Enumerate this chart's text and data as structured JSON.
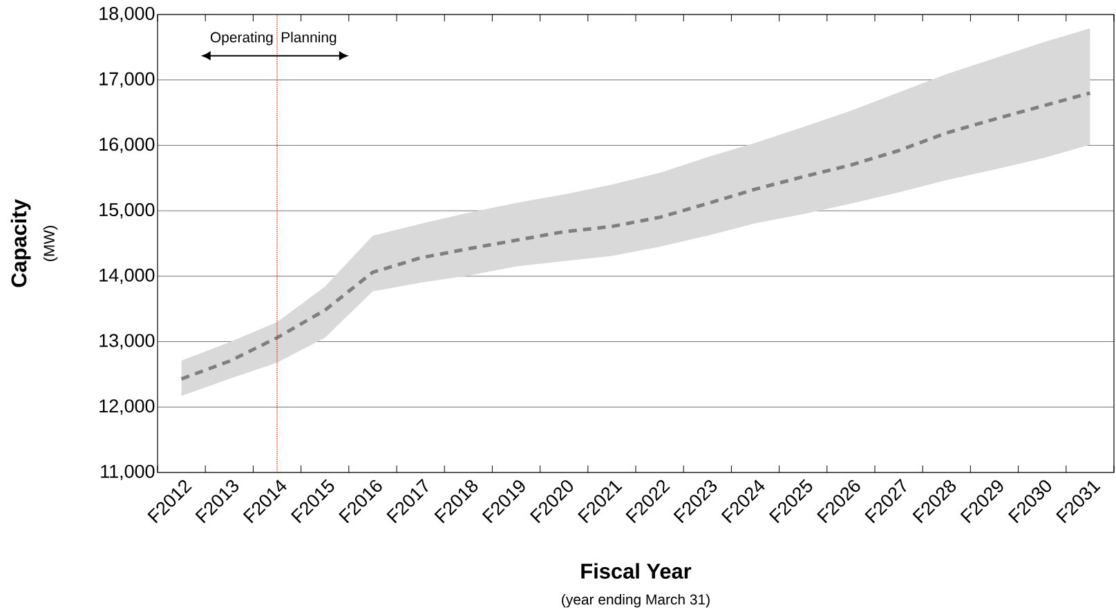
{
  "chart_data": {
    "type": "line",
    "xlabel": "Fiscal Year",
    "ylabel": "Capacity",
    "annotations": [
      "Operating",
      "Planning",
      "(MW)",
      "(year ending March 31)"
    ],
    "categories": [
      "F2012",
      "F2013",
      "F2014",
      "F2015",
      "F2016",
      "F2017",
      "F2018",
      "F2019",
      "F2020",
      "F2021",
      "F2022",
      "F2023",
      "F2024",
      "F2025",
      "F2026",
      "F2027",
      "F2028",
      "F2029",
      "F2030",
      "F2031"
    ],
    "series": [
      {
        "color": "#7f7f7f",
        "line_style": "dashed",
        "values": [
          12430,
          12700,
          13060,
          13480,
          14060,
          14280,
          14420,
          14550,
          14680,
          14760,
          14900,
          15110,
          15330,
          15520,
          15700,
          15920,
          16190,
          16400,
          16600,
          16800
        ],
        "lower": [
          12170,
          12430,
          12680,
          13060,
          13770,
          13900,
          14010,
          14150,
          14230,
          14310,
          14450,
          14620,
          14810,
          14950,
          15110,
          15280,
          15470,
          15630,
          15800,
          16010
        ],
        "upper": [
          12710,
          12990,
          13300,
          13840,
          14620,
          14800,
          14970,
          15120,
          15250,
          15400,
          15580,
          15820,
          16040,
          16280,
          16530,
          16810,
          17090,
          17330,
          17570,
          17790
        ]
      }
    ],
    "ylim": [
      11000,
      18000
    ],
    "yticks": [
      {
        "value": 11000,
        "label": "11,000"
      },
      {
        "value": 12000,
        "label": "12,000"
      },
      {
        "value": 13000,
        "label": "13,000"
      },
      {
        "value": 14000,
        "label": "14,000"
      },
      {
        "value": 15000,
        "label": "15,000"
      },
      {
        "value": 16000,
        "label": "16,000"
      },
      {
        "value": 17000,
        "label": "17,000"
      },
      {
        "value": 18000,
        "label": "18,000"
      }
    ],
    "grid": "y",
    "marker": "none",
    "ref_lines": [
      {
        "axis": "x",
        "value": "F2014",
        "color": "#ff0000",
        "line_style": "dotted"
      }
    ]
  }
}
